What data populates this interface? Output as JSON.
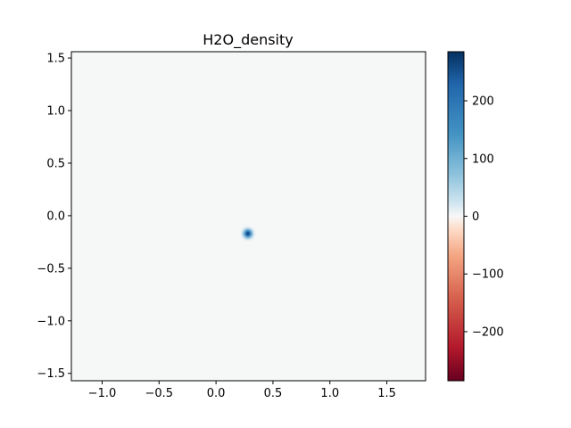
{
  "chart_data": {
    "type": "heatmap",
    "title": "H2O_density",
    "xlabel": "",
    "ylabel": "",
    "xlim": [
      -1.27,
      1.84
    ],
    "ylim": [
      -1.57,
      1.56
    ],
    "x_ticks": [
      -1.0,
      -0.5,
      0.0,
      0.5,
      1.0,
      1.5
    ],
    "x_tick_labels": [
      "−1.0",
      "−0.5",
      "0.0",
      "0.5",
      "1.0",
      "1.5"
    ],
    "y_ticks": [
      1.5,
      1.0,
      0.5,
      0.0,
      -0.5,
      -1.0,
      -1.5
    ],
    "y_tick_labels": [
      "1.5",
      "1.0",
      "0.5",
      "0.0",
      "−0.5",
      "−1.0",
      "−1.5"
    ],
    "grid": false,
    "colormap": "RdBu",
    "background_value": 0,
    "peak": {
      "x": 0.28,
      "y": -0.17,
      "value": 280
    },
    "colorbar": {
      "vmin": -285,
      "vmax": 285,
      "ticks": [
        200,
        100,
        0,
        -100,
        -200
      ],
      "tick_labels": [
        "200",
        "100",
        "0",
        "−100",
        "−200"
      ],
      "placement": "right"
    },
    "colors": {
      "low": "#67001f",
      "mid": "#f7f7f7",
      "high": "#053061"
    }
  }
}
